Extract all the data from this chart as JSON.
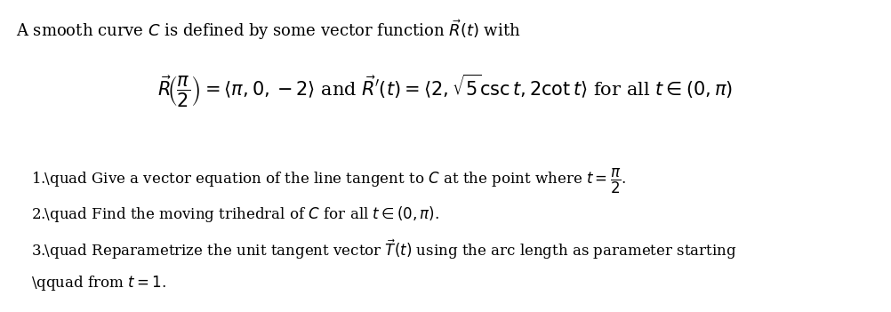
{
  "bg_color": "#ffffff",
  "text_color": "#000000",
  "fig_width": 10.02,
  "fig_height": 3.51,
  "dpi": 100,
  "intro_line": "A smooth curve $C$ is defined by some vector function $\\vec{R}(t)$ with",
  "equation_line": "$\\vec{R}\\!\\left(\\dfrac{\\pi}{2}\\right) = \\langle\\pi, 0, -2\\rangle$ and $\\vec{R}'(t) = \\langle 2, \\sqrt{5}\\operatorname{csc}t, 2\\cot t\\rangle$ for all $t \\in (0, \\pi)$",
  "item1": "1.\\quad Give a vector equation of the line tangent to $C$ at the point where $t = \\dfrac{\\pi}{2}$.",
  "item2": "2.\\quad Find the moving trihedral of $C$ for all $t \\in (0, \\pi)$.",
  "item3": "3.\\quad Reparametrize the unit tangent vector $\\vec{T}(t)$ using the arc length as parameter starting",
  "item3b": "\\qquad from $t = 1$.",
  "fontsize_intro": 13,
  "fontsize_eq": 15,
  "fontsize_items": 12
}
